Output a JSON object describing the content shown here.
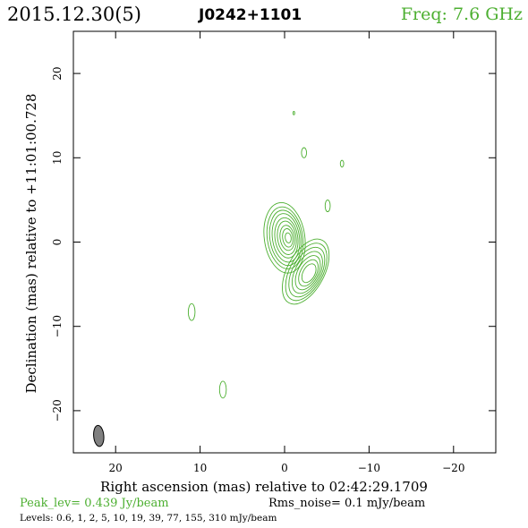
{
  "header": {
    "date": "2015.12.30(5)",
    "source": "J0242+1101",
    "freq": "Freq: 7.6 GHz"
  },
  "chart_data": {
    "type": "contour",
    "xlabel": "Right ascension (mas) relative to 02:42:29.1709",
    "ylabel": "Declination (mas) relative to +11:01:00.728",
    "xlim": [
      25,
      -25
    ],
    "ylim": [
      -25,
      25
    ],
    "x_ticks": [
      20,
      10,
      0,
      -10,
      -20
    ],
    "y_ticks": [
      20,
      10,
      0,
      -10,
      -20
    ],
    "x_tick_labels": [
      "20",
      "10",
      "0",
      "−10",
      "−20"
    ],
    "y_tick_labels": [
      "20",
      "10",
      "0",
      "−10",
      "−20"
    ],
    "contour_color": "#4caf30",
    "beam": {
      "x": 22,
      "y": -23,
      "major_mas": 2.5,
      "minor_mas": 1.2,
      "pa_deg": -5,
      "fill": "#808080"
    },
    "core": {
      "x": 0,
      "y": 0.5
    },
    "jet_blob": {
      "x": -2.5,
      "y": -3.5
    },
    "compact_components": [
      {
        "x": 11,
        "y": -8.3,
        "rx_mas": 0.4,
        "ry_mas": 1.0
      },
      {
        "x": 7.3,
        "y": -17.5,
        "rx_mas": 0.4,
        "ry_mas": 1.0
      },
      {
        "x": -2.3,
        "y": 10.6,
        "rx_mas": 0.3,
        "ry_mas": 0.6
      },
      {
        "x": -5.1,
        "y": 4.3,
        "rx_mas": 0.3,
        "ry_mas": 0.7
      },
      {
        "x": -6.8,
        "y": 9.3,
        "rx_mas": 0.2,
        "ry_mas": 0.4
      },
      {
        "x": -1.1,
        "y": 15.3,
        "rx_mas": 0.1,
        "ry_mas": 0.2
      }
    ]
  },
  "footer": {
    "peak_lev": "Peak_lev=  0.439 Jy/beam",
    "rms_noise": "Rms_noise=  0.1 mJy/beam",
    "levels": "Levels: 0.6,   1,   2,   5,  10,  19,  39,  77, 155, 310 mJy/beam"
  }
}
